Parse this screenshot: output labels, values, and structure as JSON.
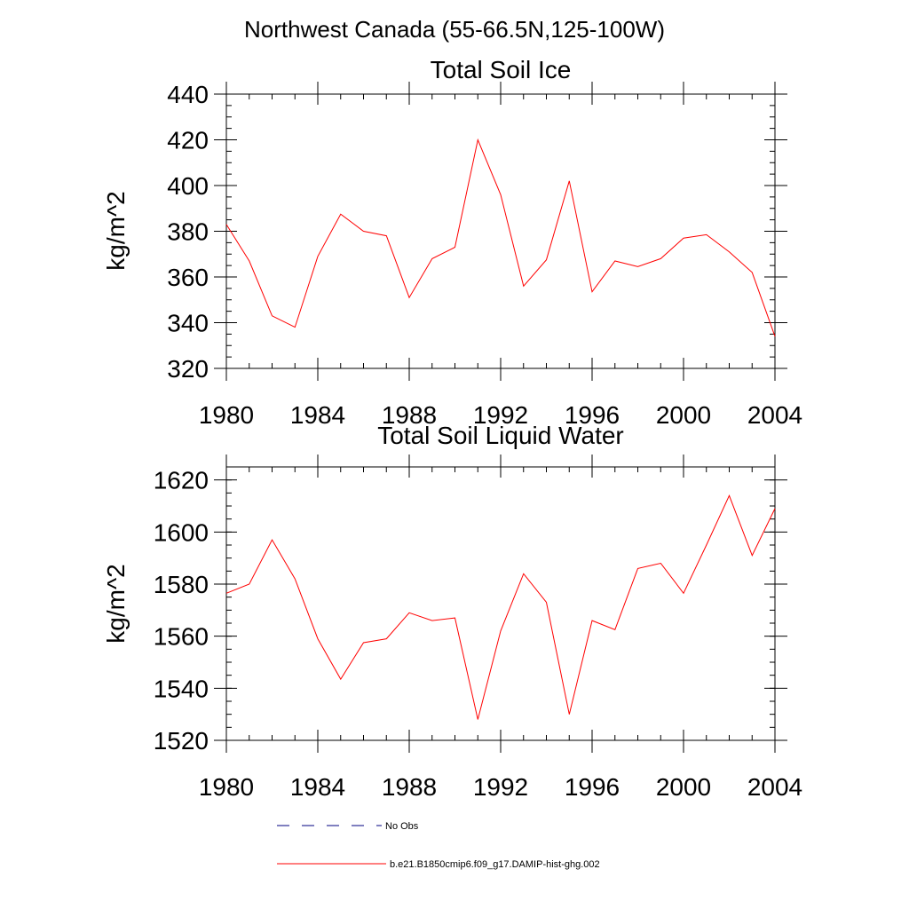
{
  "figure_title": "Northwest Canada (55-66.5N,125-100W)",
  "legend": {
    "obs_label": "No Obs",
    "model_label": "b.e21.B1850cmip6.f09_g17.DAMIP-hist-ghg.002",
    "obs_color": "#000080",
    "model_color": "#ff0000"
  },
  "chart_data": [
    {
      "type": "line",
      "title": "Total Soil Ice",
      "xlabel": "",
      "ylabel": "kg/m^2",
      "xlim": [
        1980,
        2004
      ],
      "ylim": [
        320,
        440
      ],
      "x_ticks": [
        1980,
        1984,
        1988,
        1992,
        1996,
        2000,
        2004
      ],
      "y_ticks": [
        320,
        340,
        360,
        380,
        400,
        420,
        440
      ],
      "grid": false,
      "series": [
        {
          "name": "b.e21.B1850cmip6.f09_g17.DAMIP-hist-ghg.002",
          "color": "#ff0000",
          "x": [
            1980,
            1981,
            1982,
            1983,
            1984,
            1985,
            1986,
            1987,
            1988,
            1989,
            1990,
            1991,
            1992,
            1993,
            1994,
            1995,
            1996,
            1997,
            1998,
            1999,
            2000,
            2001,
            2002,
            2003,
            2004
          ],
          "values": [
            383,
            367,
            343,
            338,
            369,
            387.5,
            380,
            378,
            351,
            368,
            373,
            420,
            396,
            356,
            367.5,
            402,
            353.5,
            367,
            364.5,
            368,
            377,
            378.5,
            371,
            362,
            334
          ]
        }
      ]
    },
    {
      "type": "line",
      "title": "Total Soil Liquid Water",
      "xlabel": "",
      "ylabel": "kg/m^2",
      "xlim": [
        1980,
        2004
      ],
      "ylim": [
        1520,
        1625
      ],
      "x_ticks": [
        1980,
        1984,
        1988,
        1992,
        1996,
        2000,
        2004
      ],
      "y_ticks": [
        1520,
        1540,
        1560,
        1580,
        1600,
        1620
      ],
      "grid": false,
      "series": [
        {
          "name": "b.e21.B1850cmip6.f09_g17.DAMIP-hist-ghg.002",
          "color": "#ff0000",
          "x": [
            1980,
            1981,
            1982,
            1983,
            1984,
            1985,
            1986,
            1987,
            1988,
            1989,
            1990,
            1991,
            1992,
            1993,
            1994,
            1995,
            1996,
            1997,
            1998,
            1999,
            2000,
            2001,
            2002,
            2003,
            2004
          ],
          "values": [
            1576.5,
            1580,
            1597,
            1582,
            1559,
            1543.5,
            1557.5,
            1559,
            1569,
            1566,
            1567,
            1528,
            1562,
            1584,
            1573,
            1530,
            1566,
            1562.5,
            1586,
            1588,
            1576.5,
            1595,
            1614,
            1591,
            1609
          ]
        }
      ]
    }
  ]
}
